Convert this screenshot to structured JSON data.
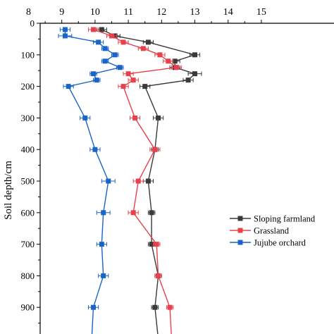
{
  "chart_data": {
    "type": "line",
    "title": "",
    "ylabel": "Soil depth/cm",
    "xlabel": "",
    "xlim": [
      8,
      15
    ],
    "ylim": [
      0,
      1000
    ],
    "y_reversed": true,
    "x_ticks": [
      "8",
      "9",
      "10",
      "11",
      "12",
      "13",
      "14",
      "15"
    ],
    "y_ticks": [
      "0",
      "100",
      "200",
      "300",
      "400",
      "500",
      "600",
      "700",
      "800",
      "900"
    ],
    "x_tick_values": [
      8,
      9,
      10,
      11,
      12,
      13,
      14,
      15
    ],
    "y_tick_values": [
      0,
      100,
      200,
      300,
      400,
      500,
      600,
      700,
      800,
      900
    ],
    "x_axis_position": "top",
    "grid": false,
    "legend_position": "right",
    "series": [
      {
        "name": "Sloping farmland",
        "color": "#3a3a3a",
        "marker": "square",
        "points": [
          {
            "x": 10.2,
            "y": 20,
            "err": 0.15
          },
          {
            "x": 10.6,
            "y": 40,
            "err": 0.15
          },
          {
            "x": 11.6,
            "y": 60,
            "err": 0.15
          },
          {
            "x": 13.0,
            "y": 100,
            "err": 0.15
          },
          {
            "x": 12.4,
            "y": 120,
            "err": 0.15
          },
          {
            "x": 12.4,
            "y": 140,
            "err": 0.15
          },
          {
            "x": 13.0,
            "y": 160,
            "err": 0.2
          },
          {
            "x": 12.8,
            "y": 180,
            "err": 0.15
          },
          {
            "x": 11.5,
            "y": 200,
            "err": 0.15
          },
          {
            "x": 11.9,
            "y": 300,
            "err": 0.15
          },
          {
            "x": 11.8,
            "y": 400,
            "err": 0.1
          },
          {
            "x": 11.6,
            "y": 500,
            "err": 0.15
          },
          {
            "x": 11.7,
            "y": 600,
            "err": 0.1
          },
          {
            "x": 11.7,
            "y": 700,
            "err": 0.1
          },
          {
            "x": 11.9,
            "y": 800,
            "err": 0.1
          },
          {
            "x": 11.8,
            "y": 900,
            "err": 0.1
          },
          {
            "x": 11.9,
            "y": 1000,
            "err": 0.1
          }
        ]
      },
      {
        "name": "Grassland",
        "color": "#e8414b",
        "marker": "square",
        "points": [
          {
            "x": 9.95,
            "y": 20,
            "err": 0.15
          },
          {
            "x": 10.5,
            "y": 40,
            "err": 0.15
          },
          {
            "x": 10.85,
            "y": 60,
            "err": 0.15
          },
          {
            "x": 11.45,
            "y": 80,
            "err": 0.15
          },
          {
            "x": 11.95,
            "y": 100,
            "err": 0.15
          },
          {
            "x": 12.2,
            "y": 120,
            "err": 0.15
          },
          {
            "x": 12.45,
            "y": 140,
            "err": 0.15
          },
          {
            "x": 11.0,
            "y": 160,
            "err": 0.15
          },
          {
            "x": 11.15,
            "y": 180,
            "err": 0.15
          },
          {
            "x": 10.85,
            "y": 200,
            "err": 0.15
          },
          {
            "x": 11.2,
            "y": 300,
            "err": 0.15
          },
          {
            "x": 11.8,
            "y": 400,
            "err": 0.15
          },
          {
            "x": 11.3,
            "y": 500,
            "err": 0.15
          },
          {
            "x": 11.15,
            "y": 600,
            "err": 0.15
          },
          {
            "x": 11.85,
            "y": 700,
            "err": 0.1
          },
          {
            "x": 11.9,
            "y": 800,
            "err": 0.1
          },
          {
            "x": 12.25,
            "y": 900,
            "err": 0.1
          },
          {
            "x": 12.3,
            "y": 1000,
            "err": 0.1
          }
        ]
      },
      {
        "name": "Jujube orchard",
        "color": "#1a64c8",
        "marker": "square",
        "points": [
          {
            "x": 9.1,
            "y": 20,
            "err": 0.15
          },
          {
            "x": 9.1,
            "y": 40,
            "err": 0.2
          },
          {
            "x": 10.1,
            "y": 60,
            "err": 0.15
          },
          {
            "x": 10.3,
            "y": 80,
            "err": 0.1
          },
          {
            "x": 10.6,
            "y": 100,
            "err": 0.1
          },
          {
            "x": 10.3,
            "y": 120,
            "err": 0.1
          },
          {
            "x": 10.75,
            "y": 140,
            "err": 0.1
          },
          {
            "x": 9.95,
            "y": 160,
            "err": 0.1
          },
          {
            "x": 10.05,
            "y": 180,
            "err": 0.1
          },
          {
            "x": 9.2,
            "y": 200,
            "err": 0.15
          },
          {
            "x": 9.7,
            "y": 300,
            "err": 0.15
          },
          {
            "x": 10.0,
            "y": 400,
            "err": 0.15
          },
          {
            "x": 10.4,
            "y": 500,
            "err": 0.2
          },
          {
            "x": 10.25,
            "y": 600,
            "err": 0.2
          },
          {
            "x": 10.2,
            "y": 700,
            "err": 0.15
          },
          {
            "x": 10.25,
            "y": 800,
            "err": 0.15
          },
          {
            "x": 9.95,
            "y": 900,
            "err": 0.15
          },
          {
            "x": 9.9,
            "y": 1000,
            "err": 0.1
          }
        ]
      }
    ]
  }
}
